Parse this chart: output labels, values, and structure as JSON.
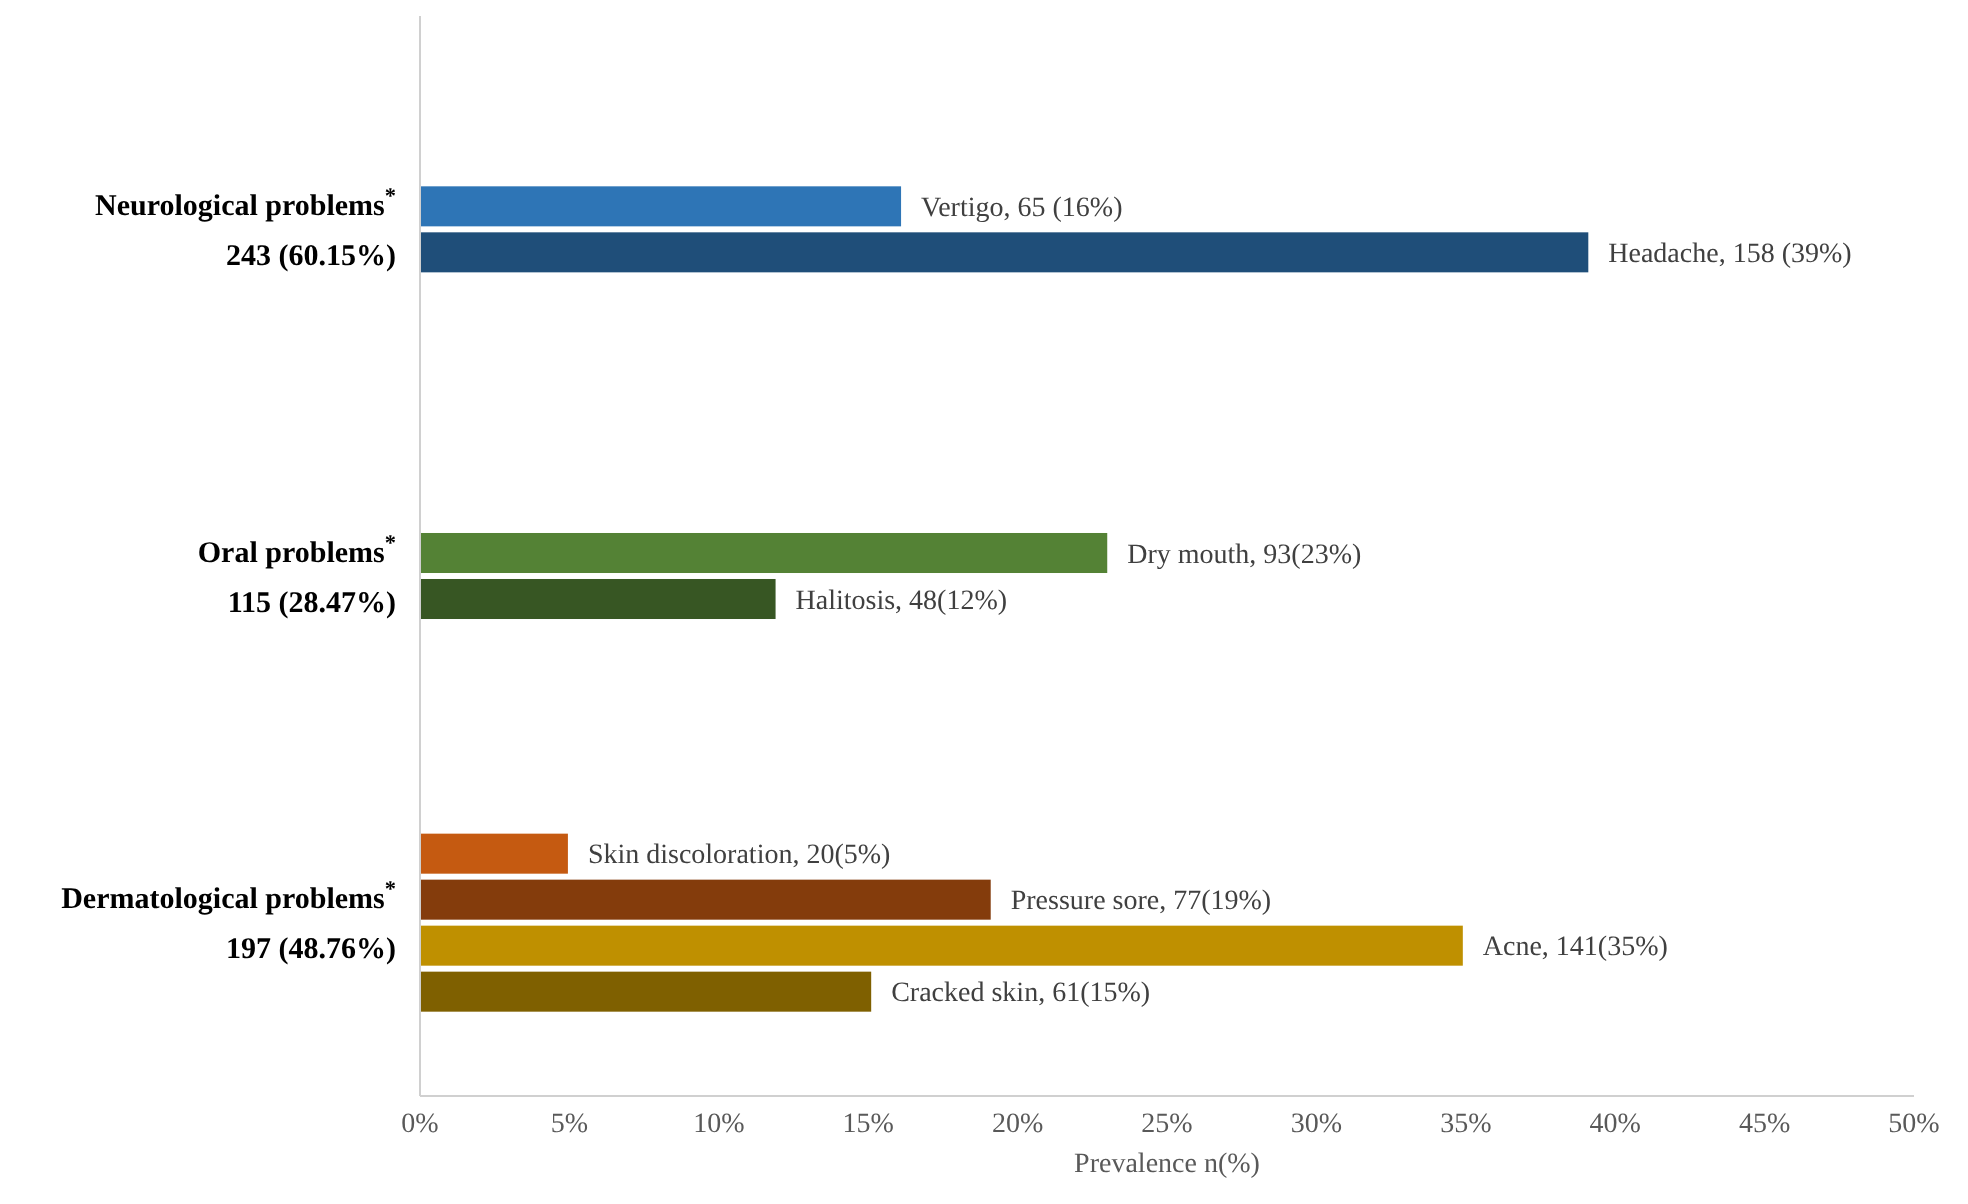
{
  "chart_data": {
    "type": "bar",
    "orientation": "horizontal",
    "xlabel": "Prevalence n(%)",
    "categories": [
      "Neurological problems$^{*}$\n243 (60.15%)",
      "Oral problems$^{*}$\n115 (28.47%)",
      "Dermatological problems$^{*}$\n197 (48.76%)"
    ],
    "series": [
      {
        "values": [
          null,
          null,
          4.95
        ],
        "colors": [
          null,
          null,
          "#c55a11"
        ],
        "value_labels": [
          null,
          null,
          "Skin discoloration, 20(5%)"
        ]
      },
      {
        "values": [
          16.1,
          23.0,
          19.1
        ],
        "colors": [
          "#2e75b6",
          "#548235",
          "#843c0c"
        ],
        "value_labels": [
          "Vertigo, 65 (16%)",
          "Dry mouth, 93(23%)",
          "Pressure sore, 77(19%)"
        ]
      },
      {
        "values": [
          39.1,
          11.9,
          34.9
        ],
        "colors": [
          "#1f4e79",
          "#375623",
          "#bf9000"
        ],
        "value_labels": [
          "Headache, 158 (39%)",
          "Halitosis, 48(12%)",
          "Acne, 141(35%)"
        ]
      },
      {
        "values": [
          null,
          null,
          15.1
        ],
        "colors": [
          null,
          null,
          "#7f6000"
        ],
        "value_labels": [
          null,
          null,
          "Cracked skin, 61(15%)"
        ]
      }
    ],
    "xlim": [
      0,
      50
    ],
    "xticks": [
      {
        "value": 0,
        "label": "0%"
      },
      {
        "value": 5,
        "label": "5%"
      },
      {
        "value": 10,
        "label": "10%"
      },
      {
        "value": 15,
        "label": "15%"
      },
      {
        "value": 20,
        "label": "20%"
      },
      {
        "value": 25,
        "label": "25%"
      },
      {
        "value": 30,
        "label": "30%"
      },
      {
        "value": 35,
        "label": "35%"
      },
      {
        "value": 40,
        "label": "40%"
      },
      {
        "value": 45,
        "label": "45%"
      },
      {
        "value": 50,
        "label": "50%"
      }
    ],
    "grid": false
  }
}
